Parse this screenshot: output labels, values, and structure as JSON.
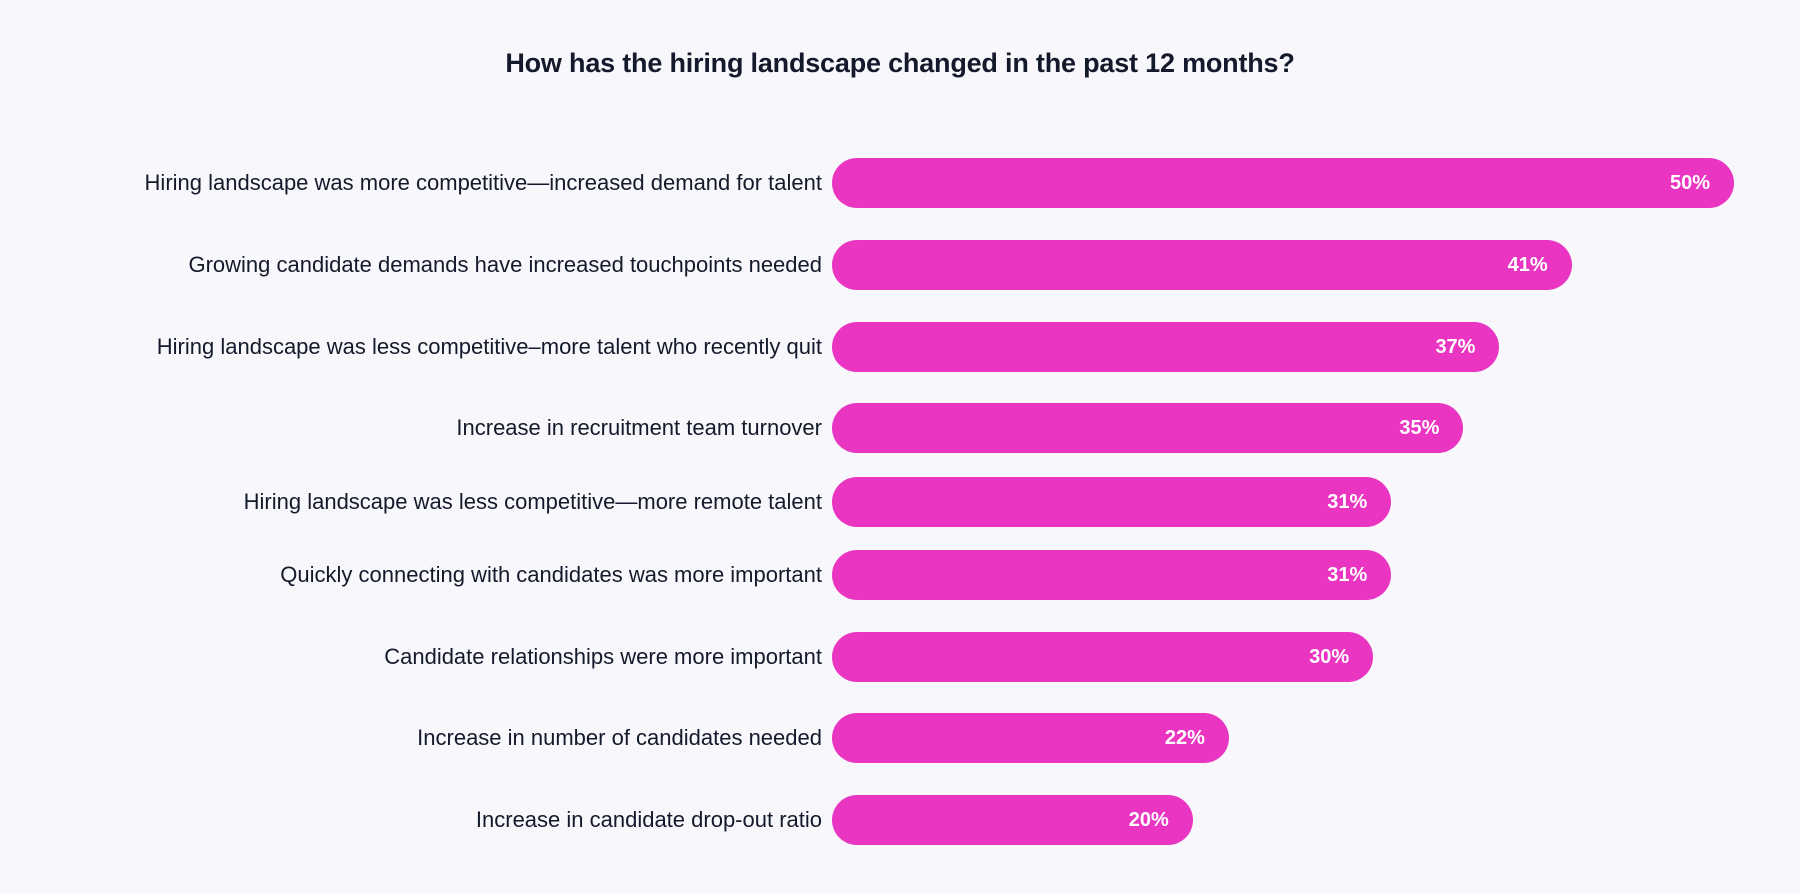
{
  "chart_data": {
    "type": "bar",
    "orientation": "horizontal",
    "title": "How has the hiring landscape changed in the past 12 months?",
    "xlabel": "",
    "ylabel": "",
    "xlim": [
      0,
      50
    ],
    "grid": false,
    "categories": [
      "Hiring landscape was more competitive—increased demand for talent",
      "Growing candidate demands have increased touchpoints needed",
      "Hiring landscape was less competitive–more talent who recently quit",
      "Increase in recruitment team turnover",
      "Hiring landscape was less competitive—more remote talent",
      "Quickly connecting with candidates was more important",
      "Candidate relationships were more important",
      "Increase in number of candidates needed",
      "Increase in candidate drop-out ratio"
    ],
    "values": [
      50,
      41,
      37,
      35,
      31,
      31,
      30,
      22,
      20
    ],
    "value_labels": [
      "50%",
      "41%",
      "37%",
      "35%",
      "31%",
      "31%",
      "30%",
      "22%",
      "20%"
    ],
    "bar_color": "#e935c1",
    "label_color": "#141a2b",
    "value_label_color": "#ffffff"
  }
}
